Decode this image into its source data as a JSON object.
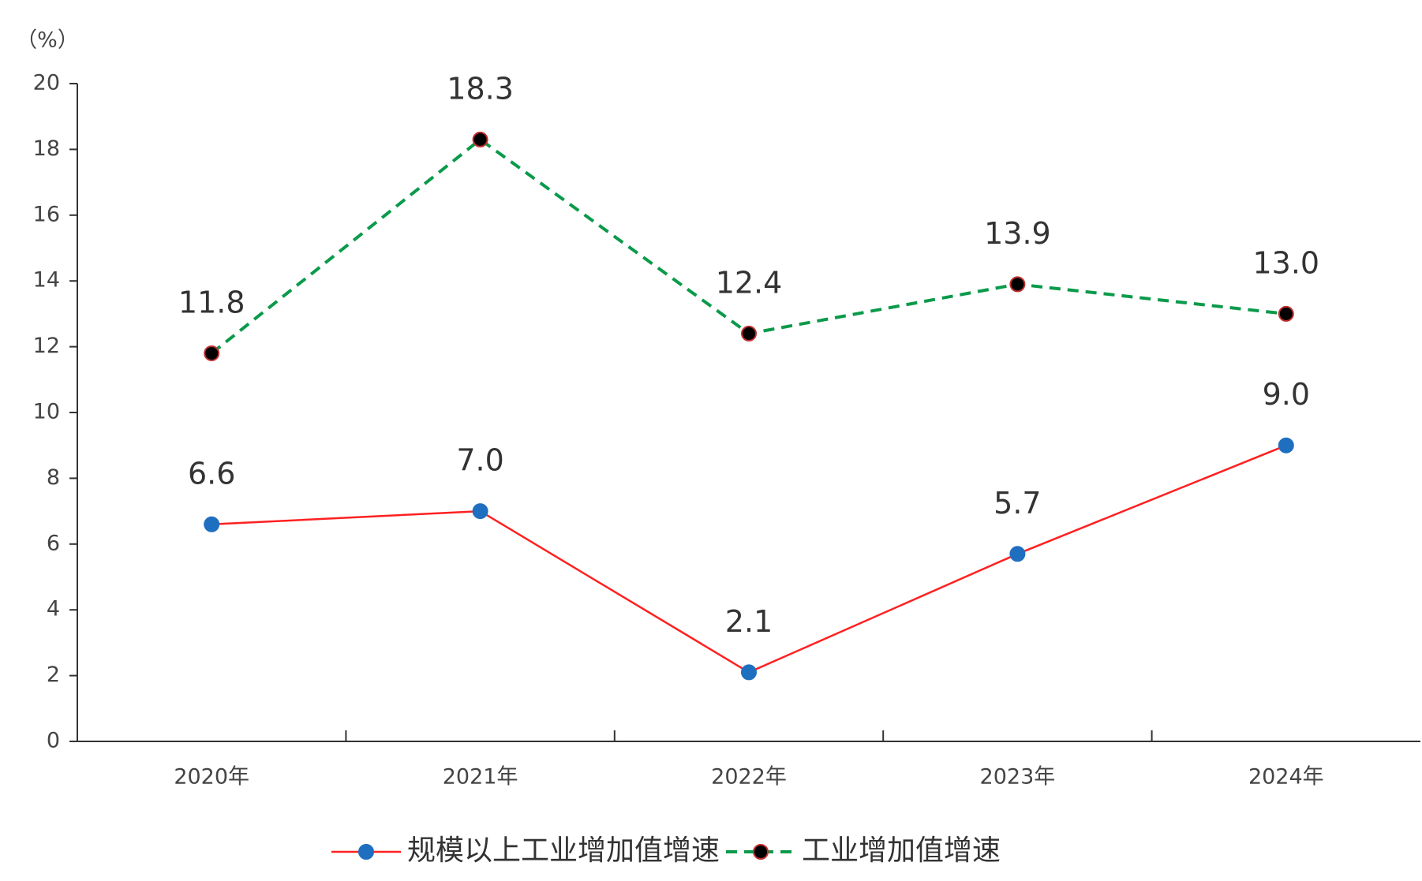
{
  "chart_data": {
    "type": "line",
    "y_unit_label": "（%）",
    "categories": [
      "2020年",
      "2021年",
      "2022年",
      "2023年",
      "2024年"
    ],
    "series": [
      {
        "name": "规模以上工业增加值增速",
        "color": "#ff2020",
        "marker_color": "#1f6fc0",
        "dashed": false,
        "values": [
          6.6,
          7.0,
          2.1,
          5.7,
          9.0
        ],
        "value_labels": [
          "6.6",
          "7.0",
          "2.1",
          "5.7",
          "9.0"
        ]
      },
      {
        "name": "工业增加值增速",
        "color": "#0a9a4a",
        "marker_color": "#000000",
        "dashed": true,
        "values": [
          11.8,
          18.3,
          12.4,
          13.9,
          13.0
        ],
        "value_labels": [
          "11.8",
          "18.3",
          "12.4",
          "13.9",
          "13.0"
        ]
      }
    ],
    "ylim": [
      0,
      20
    ],
    "yticks": [
      0,
      2,
      4,
      6,
      8,
      10,
      12,
      14,
      16,
      18,
      20
    ],
    "grid": false,
    "legend": "bottom"
  }
}
